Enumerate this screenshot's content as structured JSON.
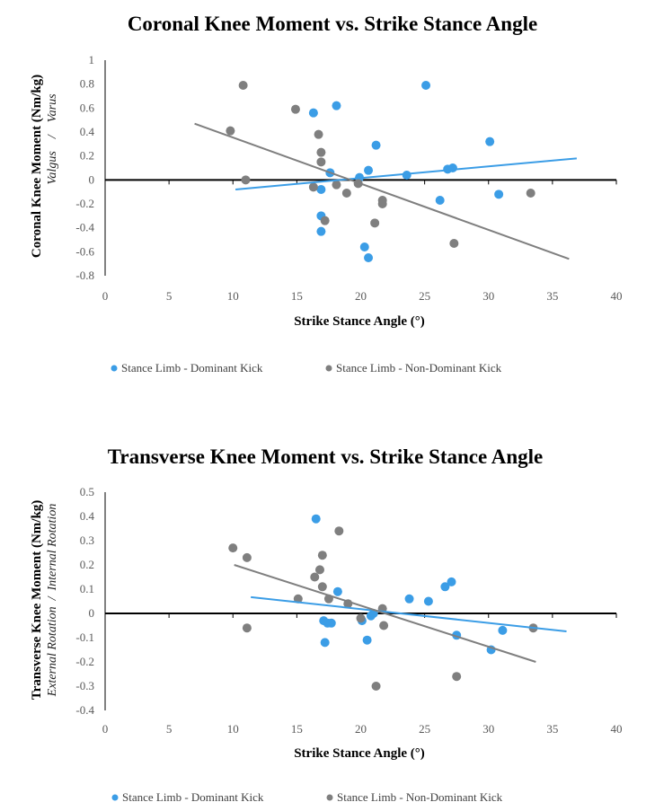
{
  "colors": {
    "dominant": "#3b9de6",
    "non_dominant": "#7f7f7f"
  },
  "chart_data": [
    {
      "type": "scatter",
      "title": "Coronal Knee Moment vs. Strike Stance Angle",
      "xlabel": "Strike Stance Angle (°)",
      "ylabel": "Coronal Knee Moment (Nm/kg)",
      "ylabel_sub": "Valgus    /    Varus",
      "xlim": [
        0,
        40
      ],
      "ylim": [
        -0.8,
        1
      ],
      "xticks": [
        0,
        5,
        10,
        15,
        20,
        25,
        30,
        35,
        40
      ],
      "xtick_labels": [
        "0",
        "5",
        "10",
        "15",
        "20",
        "25",
        "30",
        "35",
        "40"
      ],
      "yticks": [
        1,
        0.8,
        0.6,
        0.4,
        0.2,
        0,
        -0.2,
        -0.4,
        -0.6,
        -0.8
      ],
      "ytick_labels": [
        "1",
        "0.8",
        "0.6",
        "0.4",
        "0.2",
        "0",
        "-0.2",
        "-0.4",
        "-0.6",
        "-0.8"
      ],
      "legend_position": "bottom",
      "series": [
        {
          "name": "Stance Limb - Dominant Kick",
          "color_key": "dominant",
          "points": [
            [
              25.1,
              0.79
            ],
            [
              18.1,
              0.62
            ],
            [
              16.3,
              0.56
            ],
            [
              21.2,
              0.29
            ],
            [
              30.1,
              0.32
            ],
            [
              20.6,
              0.08
            ],
            [
              19.9,
              0.02
            ],
            [
              23.6,
              0.04
            ],
            [
              26.8,
              0.09
            ],
            [
              27.2,
              0.1
            ],
            [
              17.6,
              0.06
            ],
            [
              16.9,
              -0.08
            ],
            [
              26.2,
              -0.17
            ],
            [
              30.8,
              -0.12
            ],
            [
              16.9,
              -0.3
            ],
            [
              16.9,
              -0.43
            ],
            [
              20.3,
              -0.56
            ],
            [
              20.6,
              -0.65
            ]
          ],
          "trendline": [
            [
              10.2,
              -0.08
            ],
            [
              36.9,
              0.18
            ]
          ]
        },
        {
          "name": "Stance Limb - Non-Dominant Kick",
          "color_key": "non_dominant",
          "points": [
            [
              10.8,
              0.79
            ],
            [
              14.9,
              0.59
            ],
            [
              9.8,
              0.41
            ],
            [
              16.7,
              0.38
            ],
            [
              16.9,
              0.23
            ],
            [
              16.9,
              0.15
            ],
            [
              11.0,
              0.0
            ],
            [
              16.3,
              -0.06
            ],
            [
              18.1,
              -0.04
            ],
            [
              18.9,
              -0.11
            ],
            [
              19.8,
              -0.03
            ],
            [
              21.7,
              -0.17
            ],
            [
              21.7,
              -0.2
            ],
            [
              17.2,
              -0.34
            ],
            [
              21.1,
              -0.36
            ],
            [
              27.3,
              -0.53
            ],
            [
              33.3,
              -0.11
            ]
          ],
          "trendline": [
            [
              7.0,
              0.47
            ],
            [
              36.3,
              -0.66
            ]
          ]
        }
      ]
    },
    {
      "type": "scatter",
      "title": "Transverse Knee Moment vs. Strike Stance Angle",
      "xlabel": "Strike Stance Angle (°)",
      "ylabel": "Transverse Knee Moment (Nm/kg)",
      "ylabel_sub": "External Rotation  /  Internal Rotation",
      "xlim": [
        0,
        40
      ],
      "ylim": [
        -0.4,
        0.5
      ],
      "xticks": [
        0,
        5,
        10,
        15,
        20,
        25,
        30,
        35,
        40
      ],
      "xtick_labels": [
        "0",
        "5",
        "10",
        "15",
        "20",
        "25",
        "30",
        "35",
        "40"
      ],
      "yticks": [
        0.5,
        0.4,
        0.3,
        0.2,
        0.1,
        0,
        -0.1,
        -0.2,
        -0.3,
        -0.4
      ],
      "ytick_labels": [
        "0.5",
        "0.4",
        "0.3",
        "0.2",
        "0.1",
        "0",
        "-0.1",
        "-0.2",
        "-0.3",
        "-0.4"
      ],
      "legend_position": "bottom",
      "series": [
        {
          "name": "Stance Limb - Dominant Kick",
          "color_key": "dominant",
          "points": [
            [
              16.5,
              0.39
            ],
            [
              18.2,
              0.09
            ],
            [
              23.8,
              0.06
            ],
            [
              25.3,
              0.05
            ],
            [
              26.6,
              0.11
            ],
            [
              27.1,
              0.13
            ],
            [
              17.1,
              -0.03
            ],
            [
              17.4,
              -0.04
            ],
            [
              17.7,
              -0.04
            ],
            [
              17.2,
              -0.12
            ],
            [
              20.5,
              -0.11
            ],
            [
              20.1,
              -0.03
            ],
            [
              20.8,
              -0.01
            ],
            [
              21.0,
              0.0
            ],
            [
              27.5,
              -0.09
            ],
            [
              30.2,
              -0.15
            ],
            [
              31.1,
              -0.07
            ]
          ],
          "trendline": [
            [
              11.4,
              0.067
            ],
            [
              36.1,
              -0.074
            ]
          ]
        },
        {
          "name": "Stance Limb - Non-Dominant Kick",
          "color_key": "non_dominant",
          "points": [
            [
              10.0,
              0.27
            ],
            [
              11.1,
              0.23
            ],
            [
              18.3,
              0.34
            ],
            [
              17.0,
              0.24
            ],
            [
              16.8,
              0.18
            ],
            [
              16.4,
              0.15
            ],
            [
              17.0,
              0.11
            ],
            [
              15.1,
              0.06
            ],
            [
              17.5,
              0.06
            ],
            [
              19.0,
              0.04
            ],
            [
              20.0,
              -0.02
            ],
            [
              21.7,
              0.02
            ],
            [
              21.8,
              -0.05
            ],
            [
              11.1,
              -0.06
            ],
            [
              21.2,
              -0.3
            ],
            [
              27.5,
              -0.26
            ],
            [
              33.5,
              -0.06
            ]
          ],
          "trendline": [
            [
              10.1,
              0.2
            ],
            [
              33.7,
              -0.2
            ]
          ]
        }
      ]
    }
  ]
}
